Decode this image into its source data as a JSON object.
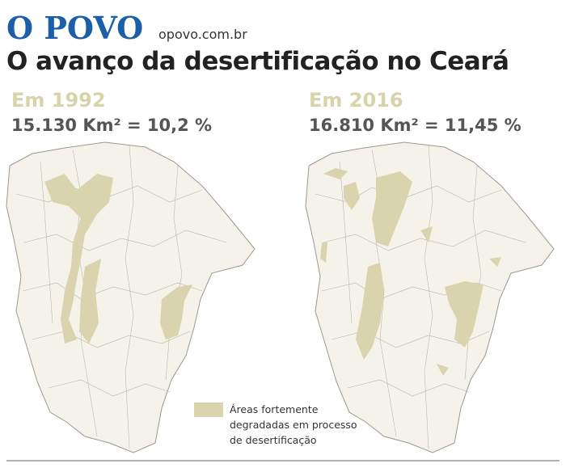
{
  "header": {
    "brand": "O POVO",
    "site": "opovo.com.br",
    "title": "O avanço da desertificação no Ceará"
  },
  "maps": [
    {
      "year": "Em 1992",
      "stat": "15.130 Km² = 10,2 %"
    },
    {
      "year": "Em 2016",
      "stat": "16.810 Km² = 11,45 %"
    }
  ],
  "legend": {
    "lines": [
      "Áreas fortemente",
      "degradadas em processo",
      "de desertificação"
    ]
  }
}
